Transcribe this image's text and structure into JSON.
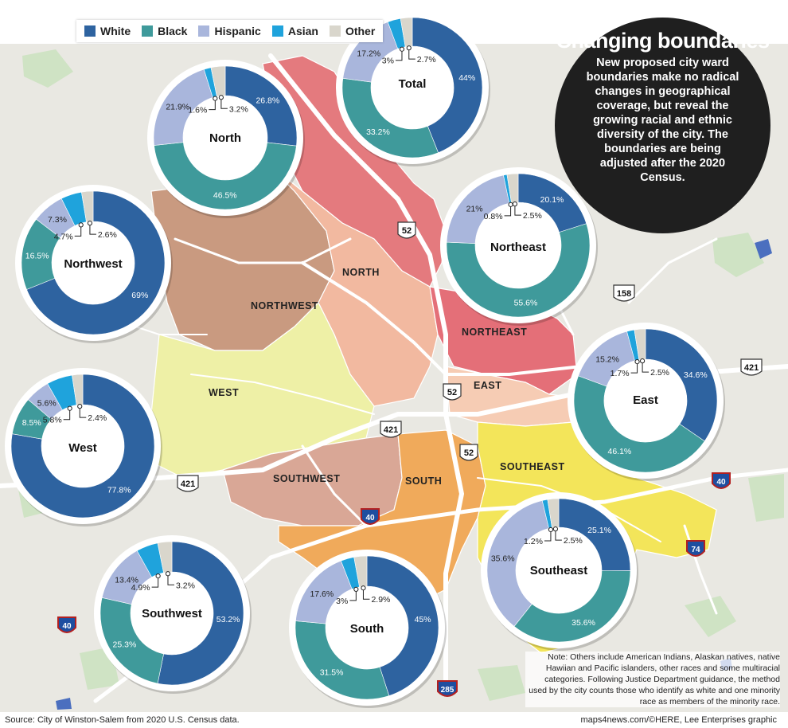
{
  "legend": [
    {
      "label": "White",
      "color": "#2e63a0"
    },
    {
      "label": "Black",
      "color": "#3f9a9b"
    },
    {
      "label": "Hispanic",
      "color": "#a9b6dc"
    },
    {
      "label": "Asian",
      "color": "#1fa3dc"
    },
    {
      "label": "Other",
      "color": "#d9d6cc"
    }
  ],
  "title": "Changing boundaries",
  "description": "New proposed city ward boundaries make no radical changes in geographical coverage, but reveal the growing racial and ethnic diversity of the city. The boundaries are being adjusted after the 2020 Census.",
  "ward_labels": [
    "NORTH",
    "NORTHWEST",
    "NORTHEAST",
    "EAST",
    "WEST",
    "SOUTHWEST",
    "SOUTH",
    "SOUTHEAST"
  ],
  "highway_shields": [
    "52",
    "52",
    "52",
    "158",
    "421",
    "421",
    "421",
    "40",
    "40",
    "40",
    "74",
    "285"
  ],
  "chart_data": {
    "type": "pie",
    "series_labels": [
      "White",
      "Black",
      "Hispanic",
      "Asian",
      "Other"
    ],
    "pies": [
      {
        "name": "Total",
        "values": [
          44,
          33.2,
          17.2,
          3,
          2.7
        ],
        "labels": [
          "44%",
          "33.2%",
          "17.2%",
          "3%",
          "2.7%"
        ]
      },
      {
        "name": "North",
        "values": [
          26.8,
          46.5,
          21.9,
          1.6,
          3.2
        ],
        "labels": [
          "26.8%",
          "46.5%",
          "21.9%",
          "1.6%",
          "3.2%"
        ]
      },
      {
        "name": "Northwest",
        "values": [
          69,
          16.5,
          7.3,
          4.7,
          2.6
        ],
        "labels": [
          "69%",
          "16.5%",
          "7.3%",
          "4.7%",
          "2.6%"
        ]
      },
      {
        "name": "Northeast",
        "values": [
          20.1,
          55.6,
          21,
          0.8,
          2.5
        ],
        "labels": [
          "20.1%",
          "55.6%",
          "21%",
          "0.8%",
          "2.5%"
        ]
      },
      {
        "name": "East",
        "values": [
          34.6,
          46.1,
          15.2,
          1.7,
          2.5
        ],
        "labels": [
          "34.6%",
          "46.1%",
          "15.2%",
          "1.7%",
          "2.5%"
        ]
      },
      {
        "name": "West",
        "values": [
          77.8,
          8.5,
          5.6,
          5.8,
          2.4
        ],
        "labels": [
          "77.8%",
          "8.5%",
          "5.6%",
          "5.8%",
          "2.4%"
        ]
      },
      {
        "name": "Southwest",
        "values": [
          53.2,
          25.3,
          13.4,
          4.9,
          3.2
        ],
        "labels": [
          "53.2%",
          "25.3%",
          "13.4%",
          "4.9%",
          "3.2%"
        ]
      },
      {
        "name": "South",
        "values": [
          45,
          31.5,
          17.6,
          3,
          2.9
        ],
        "labels": [
          "45%",
          "31.5%",
          "17.6%",
          "3%",
          "2.9%"
        ]
      },
      {
        "name": "Southeast",
        "values": [
          25.1,
          35.6,
          35.6,
          1.2,
          2.5
        ],
        "labels": [
          "25.1%",
          "35.6%",
          "35.6%",
          "1.2%",
          "2.5%"
        ]
      }
    ]
  },
  "note": "Note: Others include American Indians, Alaskan natives, native Hawiian and Pacific islanders, other races and some multiracial categories. Following Justice Department guidance, the method used by the city counts those who identify as white and one minority race as members of the minority race.",
  "source": "Source: City of Winston-Salem from 2020 U.S. Census data.",
  "credit": "maps4news.com/©HERE, Lee Enterprises graphic"
}
